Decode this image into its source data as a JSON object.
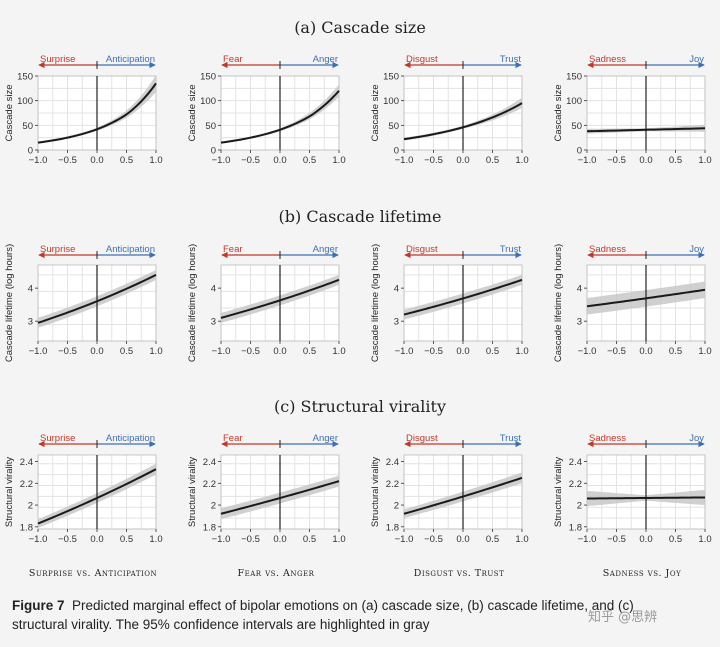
{
  "section_titles": [
    "(a) Cascade size",
    "(b) Cascade lifetime",
    "(c) Structural virality"
  ],
  "ylabels": [
    "Cascade size",
    "Cascade lifetime (log hours)",
    "Structural virality"
  ],
  "pairs": [
    {
      "left": "Surprise",
      "right": "Anticipation",
      "footer": "Surprise vs. Anticipation"
    },
    {
      "left": "Fear",
      "right": "Anger",
      "footer": "Fear vs. Anger"
    },
    {
      "left": "Disgust",
      "right": "Trust",
      "footer": "Disgust vs. Trust"
    },
    {
      "left": "Sadness",
      "right": "Joy",
      "footer": "Sadness vs. Joy"
    }
  ],
  "colors": {
    "left_arrow": "#c0392b",
    "right_arrow": "#3d6fb3",
    "line": "#1a1a1a",
    "band": "#c8c8c8",
    "grid": "#e3e3e3"
  },
  "caption": {
    "figure_label": "Figure 7",
    "text": "Predicted marginal effect of bipolar emotions on (a) cascade size, (b) cascade lifetime, and (c) structural virality. The 95% confidence intervals are highlighted in gray"
  },
  "watermark": "知乎 @思辨",
  "chart_data": [
    {
      "type": "line",
      "row": "Cascade size",
      "pair": "Surprise vs. Anticipation",
      "xlim": [
        -1,
        1
      ],
      "ylim": [
        0,
        150
      ],
      "xticks": [
        -1.0,
        -0.5,
        0.0,
        0.5,
        1.0
      ],
      "yticks": [
        0,
        50,
        100,
        150
      ],
      "x": [
        -1,
        -0.5,
        0,
        0.5,
        1
      ],
      "y": [
        15,
        25,
        42,
        72,
        135
      ],
      "lower": [
        13,
        23,
        39,
        65,
        118
      ],
      "upper": [
        17,
        28,
        45,
        80,
        152
      ],
      "grid": true
    },
    {
      "type": "line",
      "row": "Cascade size",
      "pair": "Fear vs. Anger",
      "xlim": [
        -1,
        1
      ],
      "ylim": [
        0,
        150
      ],
      "xticks": [
        -1.0,
        -0.5,
        0.0,
        0.5,
        1.0
      ],
      "yticks": [
        0,
        50,
        100,
        150
      ],
      "x": [
        -1,
        -0.5,
        0,
        0.5,
        1
      ],
      "y": [
        15,
        25,
        41,
        68,
        120
      ],
      "lower": [
        13,
        23,
        38,
        62,
        108
      ],
      "upper": [
        17,
        27,
        44,
        75,
        133
      ],
      "grid": true
    },
    {
      "type": "line",
      "row": "Cascade size",
      "pair": "Disgust vs. Trust",
      "xlim": [
        -1,
        1
      ],
      "ylim": [
        0,
        150
      ],
      "xticks": [
        -1.0,
        -0.5,
        0.0,
        0.5,
        1.0
      ],
      "yticks": [
        0,
        50,
        100,
        150
      ],
      "x": [
        -1,
        -0.5,
        0,
        0.5,
        1
      ],
      "y": [
        22,
        32,
        46,
        66,
        95
      ],
      "lower": [
        19,
        29,
        43,
        60,
        85
      ],
      "upper": [
        25,
        35,
        49,
        72,
        106
      ],
      "grid": true
    },
    {
      "type": "line",
      "row": "Cascade size",
      "pair": "Sadness vs. Joy",
      "xlim": [
        -1,
        1
      ],
      "ylim": [
        0,
        150
      ],
      "xticks": [
        -1.0,
        -0.5,
        0.0,
        0.5,
        1.0
      ],
      "yticks": [
        0,
        50,
        100,
        150
      ],
      "x": [
        -1,
        0,
        1
      ],
      "y": [
        38,
        41,
        44
      ],
      "lower": [
        33,
        38,
        37
      ],
      "upper": [
        43,
        44,
        51
      ],
      "grid": true
    },
    {
      "type": "line",
      "row": "Cascade lifetime (log hours)",
      "pair": "Surprise vs. Anticipation",
      "xlim": [
        -1,
        1
      ],
      "ylim": [
        2.4,
        4.7
      ],
      "xticks": [
        -1.0,
        -0.5,
        0.0,
        0.5,
        1.0
      ],
      "yticks": [
        3,
        4
      ],
      "x": [
        -1,
        1
      ],
      "y": [
        2.95,
        4.4
      ],
      "lower": [
        2.8,
        4.25
      ],
      "upper": [
        3.1,
        4.55
      ],
      "grid": true
    },
    {
      "type": "line",
      "row": "Cascade lifetime (log hours)",
      "pair": "Fear vs. Anger",
      "xlim": [
        -1,
        1
      ],
      "ylim": [
        2.4,
        4.7
      ],
      "xticks": [
        -1.0,
        -0.5,
        0.0,
        0.5,
        1.0
      ],
      "yticks": [
        3,
        4
      ],
      "x": [
        -1,
        1
      ],
      "y": [
        3.1,
        4.25
      ],
      "lower": [
        2.95,
        4.1
      ],
      "upper": [
        3.25,
        4.4
      ],
      "grid": true
    },
    {
      "type": "line",
      "row": "Cascade lifetime (log hours)",
      "pair": "Disgust vs. Trust",
      "xlim": [
        -1,
        1
      ],
      "ylim": [
        2.4,
        4.7
      ],
      "xticks": [
        -1.0,
        -0.5,
        0.0,
        0.5,
        1.0
      ],
      "yticks": [
        3,
        4
      ],
      "x": [
        -1,
        1
      ],
      "y": [
        3.2,
        4.25
      ],
      "lower": [
        3.05,
        4.1
      ],
      "upper": [
        3.35,
        4.4
      ],
      "grid": true
    },
    {
      "type": "line",
      "row": "Cascade lifetime (log hours)",
      "pair": "Sadness vs. Joy",
      "xlim": [
        -1,
        1
      ],
      "ylim": [
        2.4,
        4.7
      ],
      "xticks": [
        -1.0,
        -0.5,
        0.0,
        0.5,
        1.0
      ],
      "yticks": [
        3,
        4
      ],
      "x": [
        -1,
        1
      ],
      "y": [
        3.45,
        3.95
      ],
      "lower": [
        3.2,
        3.7
      ],
      "upper": [
        3.7,
        4.2
      ],
      "grid": true
    },
    {
      "type": "line",
      "row": "Structural virality",
      "pair": "Surprise vs. Anticipation",
      "xlim": [
        -1,
        1
      ],
      "ylim": [
        1.78,
        2.46
      ],
      "xticks": [
        -1.0,
        -0.5,
        0.0,
        0.5,
        1.0
      ],
      "yticks": [
        1.8,
        2.0,
        2.2,
        2.4
      ],
      "x": [
        -1,
        1
      ],
      "y": [
        1.83,
        2.33
      ],
      "lower": [
        1.79,
        2.28
      ],
      "upper": [
        1.87,
        2.38
      ],
      "grid": true
    },
    {
      "type": "line",
      "row": "Structural virality",
      "pair": "Fear vs. Anger",
      "xlim": [
        -1,
        1
      ],
      "ylim": [
        1.78,
        2.46
      ],
      "xticks": [
        -1.0,
        -0.5,
        0.0,
        0.5,
        1.0
      ],
      "yticks": [
        1.8,
        2.0,
        2.2,
        2.4
      ],
      "x": [
        -1,
        1
      ],
      "y": [
        1.92,
        2.22
      ],
      "lower": [
        1.87,
        2.17
      ],
      "upper": [
        1.97,
        2.27
      ],
      "grid": true
    },
    {
      "type": "line",
      "row": "Structural virality",
      "pair": "Disgust vs. Trust",
      "xlim": [
        -1,
        1
      ],
      "ylim": [
        1.78,
        2.46
      ],
      "xticks": [
        -1.0,
        -0.5,
        0.0,
        0.5,
        1.0
      ],
      "yticks": [
        1.8,
        2.0,
        2.2,
        2.4
      ],
      "x": [
        -1,
        1
      ],
      "y": [
        1.92,
        2.25
      ],
      "lower": [
        1.88,
        2.2
      ],
      "upper": [
        1.96,
        2.3
      ],
      "grid": true
    },
    {
      "type": "line",
      "row": "Structural virality",
      "pair": "Sadness vs. Joy",
      "xlim": [
        -1,
        1
      ],
      "ylim": [
        1.78,
        2.46
      ],
      "xticks": [
        -1.0,
        -0.5,
        0.0,
        0.5,
        1.0
      ],
      "yticks": [
        1.8,
        2.0,
        2.2,
        2.4
      ],
      "x": [
        -1,
        0,
        1
      ],
      "y": [
        2.06,
        2.065,
        2.07
      ],
      "lower": [
        1.99,
        2.04,
        2.0
      ],
      "upper": [
        2.13,
        2.09,
        2.14
      ],
      "grid": true
    }
  ]
}
